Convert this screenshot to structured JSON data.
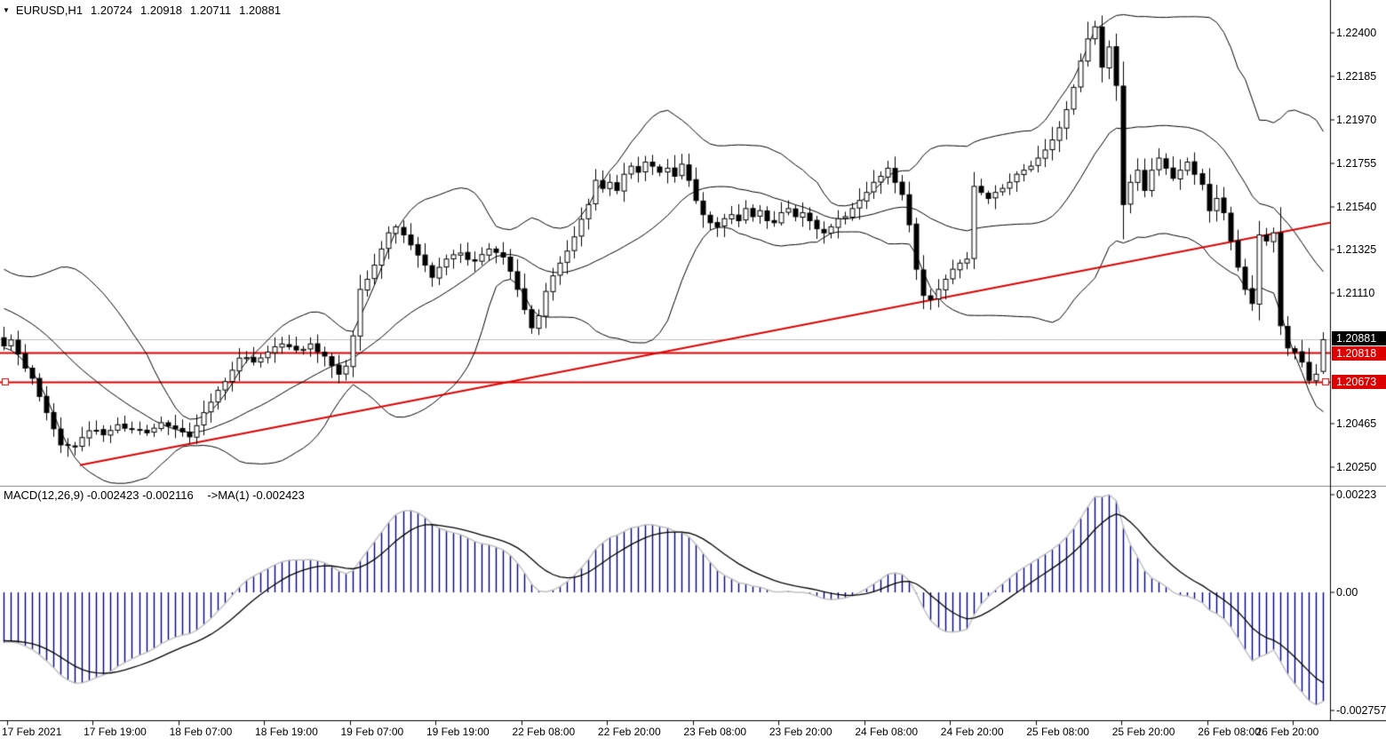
{
  "title": {
    "symbol": "EURUSD,H1",
    "open": "1.20724",
    "high": "1.20918",
    "low": "1.20711",
    "close": "1.20881"
  },
  "badges": [
    {
      "text": "1.20881",
      "price": 1.20881,
      "bg": "#000000"
    },
    {
      "text": "1.20818",
      "price": 1.20818,
      "bg": "#dd0000"
    },
    {
      "text": "1.20673",
      "price": 1.20673,
      "bg": "#dd0000"
    }
  ],
  "macd": {
    "label_main": "MACD(12,26,9) -0.002423 -0.002116",
    "label_ma": "->MA(1) -0.002423",
    "macd_value": -0.002423,
    "signal_value": -0.002116,
    "ma1_value": -0.002423,
    "axis_ticks": [
      "0.00223",
      "0.00",
      "-0.002757"
    ],
    "bar_color": "#000080",
    "macd_line_color": "#c0c0c0",
    "signal_color": "#000000"
  },
  "chart_data": {
    "type": "candlestick",
    "symbol": "EURUSD",
    "timeframe": "H1",
    "title": "EURUSD,H1 1.20724 1.20918 1.20711 1.20881",
    "ylim": [
      1.2014,
      1.22495
    ],
    "grid": false,
    "price_axis_ticks": [
      "1.22400",
      "1.22185",
      "1.21970",
      "1.21755",
      "1.21540",
      "1.21325",
      "1.21110",
      "1.20465",
      "1.20250"
    ],
    "x_tick_labels": [
      "17 Feb 2021",
      "17 Feb 19:00",
      "18 Feb 07:00",
      "18 Feb 19:00",
      "19 Feb 07:00",
      "19 Feb 19:00",
      "22 Feb 08:00",
      "22 Feb 20:00",
      "23 Feb 08:00",
      "23 Feb 20:00",
      "24 Feb 08:00",
      "24 Feb 20:00",
      "25 Feb 08:00",
      "25 Feb 20:00",
      "26 Feb 08:00",
      "26 Feb 20:00"
    ],
    "x_tick_step_bars": 12,
    "visible_bars": 186,
    "current_bar": {
      "open": 1.20724,
      "high": 1.20918,
      "low": 1.20711,
      "close": 1.20881
    },
    "price_lines": [
      {
        "price": 1.20881,
        "color": "#c0c0c0",
        "kind": "current-price"
      },
      {
        "price": 1.20818,
        "color": "#dd0000",
        "kind": "horizontal-line"
      },
      {
        "price": 1.20673,
        "color": "#dd0000",
        "kind": "horizontal-line",
        "selected": true
      }
    ],
    "trendline": {
      "x1_bar": 10.7,
      "price1": 1.2026,
      "x2_bar": 186.0,
      "price2": 1.2146,
      "color": "#dd0000"
    },
    "bollinger": {
      "period": 20,
      "deviation": 2,
      "color": "#000000"
    },
    "candle_colors": {
      "up_fill": "#ffffff",
      "down_fill": "#000000",
      "outline": "#000000"
    },
    "close_anchors": [
      [
        0,
        1.2085
      ],
      [
        1,
        1.2088
      ],
      [
        2,
        1.2081
      ],
      [
        4,
        1.2069
      ],
      [
        5,
        1.206
      ],
      [
        6,
        1.2052
      ],
      [
        7,
        1.2044
      ],
      [
        8,
        1.2036
      ],
      [
        10,
        1.2035
      ],
      [
        12,
        1.2043
      ],
      [
        14,
        1.2041
      ],
      [
        16,
        1.2046
      ],
      [
        18,
        1.2044
      ],
      [
        20,
        1.2042
      ],
      [
        22,
        1.2047
      ],
      [
        24,
        1.2044
      ],
      [
        26,
        1.204
      ],
      [
        28,
        1.2052
      ],
      [
        30,
        1.2063
      ],
      [
        32,
        1.2073
      ],
      [
        33,
        1.2079
      ],
      [
        35,
        1.2077
      ],
      [
        37,
        1.2082
      ],
      [
        39,
        1.2086
      ],
      [
        41,
        1.2083
      ],
      [
        43,
        1.2086
      ],
      [
        45,
        1.208
      ],
      [
        47,
        1.2071
      ],
      [
        48,
        1.2075
      ],
      [
        49,
        1.209
      ],
      [
        50,
        1.2113
      ],
      [
        51,
        1.2118
      ],
      [
        52,
        1.2125
      ],
      [
        53,
        1.2133
      ],
      [
        54,
        1.2141
      ],
      [
        55,
        1.2144
      ],
      [
        56,
        1.214
      ],
      [
        57,
        1.2135
      ],
      [
        58,
        1.213
      ],
      [
        59,
        1.2125
      ],
      [
        60,
        1.2119
      ],
      [
        62,
        1.2128
      ],
      [
        64,
        1.2131
      ],
      [
        66,
        1.2127
      ],
      [
        68,
        1.2133
      ],
      [
        70,
        1.2129
      ],
      [
        71,
        1.2122
      ],
      [
        72,
        1.2113
      ],
      [
        73,
        1.2103
      ],
      [
        74,
        1.2094
      ],
      [
        75,
        1.21
      ],
      [
        76,
        1.2112
      ],
      [
        78,
        1.2126
      ],
      [
        80,
        1.2139
      ],
      [
        82,
        1.2155
      ],
      [
        83,
        1.2167
      ],
      [
        84,
        1.2163
      ],
      [
        85,
        1.2166
      ],
      [
        86,
        1.2162
      ],
      [
        87,
        1.217
      ],
      [
        88,
        1.2174
      ],
      [
        89,
        1.2171
      ],
      [
        90,
        1.2176
      ],
      [
        91,
        1.2174
      ],
      [
        92,
        1.2171
      ],
      [
        93,
        1.2173
      ],
      [
        94,
        1.2169
      ],
      [
        95,
        1.2175
      ],
      [
        96,
        1.2167
      ],
      [
        97,
        1.2157
      ],
      [
        98,
        1.215
      ],
      [
        99,
        1.2146
      ],
      [
        100,
        1.2144
      ],
      [
        101,
        1.2148
      ],
      [
        102,
        1.215
      ],
      [
        103,
        1.2147
      ],
      [
        104,
        1.2153
      ],
      [
        105,
        1.2149
      ],
      [
        106,
        1.2152
      ],
      [
        107,
        1.2147
      ],
      [
        108,
        1.2146
      ],
      [
        109,
        1.2151
      ],
      [
        110,
        1.2153
      ],
      [
        111,
        1.2149
      ],
      [
        112,
        1.2151
      ],
      [
        113,
        1.2147
      ],
      [
        114,
        1.2143
      ],
      [
        115,
        1.2141
      ],
      [
        116,
        1.2144
      ],
      [
        117,
        1.2148
      ],
      [
        118,
        1.2149
      ],
      [
        119,
        1.2153
      ],
      [
        120,
        1.2157
      ],
      [
        121,
        1.2161
      ],
      [
        122,
        1.2166
      ],
      [
        123,
        1.2169
      ],
      [
        124,
        1.2173
      ],
      [
        125,
        1.2166
      ],
      [
        126,
        1.216
      ],
      [
        127,
        1.2145
      ],
      [
        128,
        1.2123
      ],
      [
        129,
        1.211
      ],
      [
        130,
        1.2108
      ],
      [
        131,
        1.2113
      ],
      [
        132,
        1.2118
      ],
      [
        133,
        1.2123
      ],
      [
        134,
        1.2126
      ],
      [
        135,
        1.2128
      ],
      [
        136,
        1.2164
      ],
      [
        137,
        1.2161
      ],
      [
        138,
        1.2158
      ],
      [
        139,
        1.2161
      ],
      [
        140,
        1.2163
      ],
      [
        141,
        1.2166
      ],
      [
        142,
        1.217
      ],
      [
        143,
        1.2172
      ],
      [
        144,
        1.2174
      ],
      [
        145,
        1.2178
      ],
      [
        146,
        1.2182
      ],
      [
        147,
        1.2187
      ],
      [
        148,
        1.2193
      ],
      [
        149,
        1.2202
      ],
      [
        150,
        1.2213
      ],
      [
        151,
        1.2226
      ],
      [
        152,
        1.2237
      ],
      [
        153,
        1.2243
      ],
      [
        154,
        1.2223
      ],
      [
        155,
        1.2233
      ],
      [
        156,
        1.2214
      ],
      [
        157,
        1.2155
      ],
      [
        158,
        1.2166
      ],
      [
        159,
        1.2172
      ],
      [
        160,
        1.2162
      ],
      [
        161,
        1.2172
      ],
      [
        162,
        1.2178
      ],
      [
        163,
        1.2173
      ],
      [
        164,
        1.2168
      ],
      [
        165,
        1.2172
      ],
      [
        166,
        1.2176
      ],
      [
        167,
        1.217
      ],
      [
        168,
        1.2165
      ],
      [
        169,
        1.2152
      ],
      [
        170,
        1.2158
      ],
      [
        171,
        1.2151
      ],
      [
        172,
        1.2137
      ],
      [
        173,
        1.2124
      ],
      [
        174,
        1.2113
      ],
      [
        175,
        1.2106
      ],
      [
        176,
        1.214
      ],
      [
        177,
        1.2137
      ],
      [
        178,
        1.2141
      ],
      [
        179,
        1.2095
      ],
      [
        180,
        1.2084
      ],
      [
        181,
        1.2082
      ],
      [
        182,
        1.2077
      ],
      [
        183,
        1.2068
      ],
      [
        184,
        1.2071
      ],
      [
        185,
        1.20881
      ]
    ],
    "wick_overrides": {
      "8": {
        "l": 1.2032
      },
      "9": {
        "l": 1.20301
      },
      "47": {
        "l": 1.20665
      },
      "74": {
        "l": 1.2091
      },
      "152": {
        "h": 1.22455
      },
      "153": {
        "h": 1.2246
      },
      "179": {
        "l": 1.20905
      },
      "183": {
        "l": 1.2066
      },
      "185": {
        "o": 1.20724,
        "h": 1.20918,
        "l": 1.20711,
        "c": 1.20881
      }
    },
    "prehistory": {
      "bars": 40,
      "start_price": 1.2162,
      "end_price": 1.209
    }
  }
}
